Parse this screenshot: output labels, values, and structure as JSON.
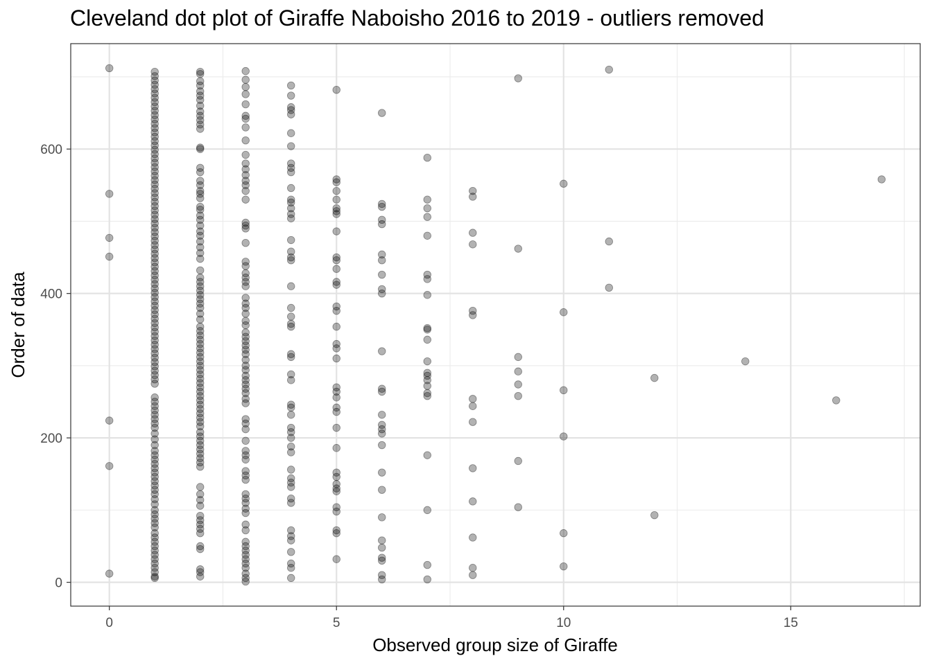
{
  "chart_data": {
    "type": "scatter",
    "title": "Cleveland dot plot of Giraffe Naboisho 2016 to 2019 - outliers removed",
    "xlabel": "Observed group size of Giraffe",
    "ylabel": "Order of data",
    "xlim": [
      -0.85,
      17.85
    ],
    "ylim": [
      -33,
      746
    ],
    "x_ticks": [
      0,
      5,
      10,
      15
    ],
    "y_ticks": [
      0,
      200,
      400,
      600
    ],
    "grid": true,
    "point_color": "#000000",
    "point_alpha": 0.3,
    "points": [
      [
        0,
        12
      ],
      [
        0,
        161
      ],
      [
        0,
        224
      ],
      [
        0,
        451
      ],
      [
        0,
        477
      ],
      [
        0,
        538
      ],
      [
        0,
        712
      ],
      [
        1,
        6
      ],
      [
        1,
        8
      ],
      [
        1,
        14
      ],
      [
        1,
        20
      ],
      [
        1,
        26
      ],
      [
        1,
        32
      ],
      [
        1,
        38
      ],
      [
        1,
        44
      ],
      [
        1,
        50
      ],
      [
        1,
        56
      ],
      [
        1,
        62
      ],
      [
        1,
        68
      ],
      [
        1,
        76
      ],
      [
        1,
        82
      ],
      [
        1,
        88
      ],
      [
        1,
        94
      ],
      [
        1,
        100
      ],
      [
        1,
        108
      ],
      [
        1,
        115
      ],
      [
        1,
        122
      ],
      [
        1,
        128
      ],
      [
        1,
        134
      ],
      [
        1,
        140
      ],
      [
        1,
        146
      ],
      [
        1,
        152
      ],
      [
        1,
        158
      ],
      [
        1,
        164
      ],
      [
        1,
        170
      ],
      [
        1,
        176
      ],
      [
        1,
        182
      ],
      [
        1,
        190
      ],
      [
        1,
        198
      ],
      [
        1,
        206
      ],
      [
        1,
        214
      ],
      [
        1,
        220
      ],
      [
        1,
        226
      ],
      [
        1,
        232
      ],
      [
        1,
        238
      ],
      [
        1,
        244
      ],
      [
        1,
        250
      ],
      [
        1,
        256
      ],
      [
        1,
        275
      ],
      [
        1,
        281
      ],
      [
        1,
        287
      ],
      [
        1,
        293
      ],
      [
        1,
        299
      ],
      [
        1,
        305
      ],
      [
        1,
        311
      ],
      [
        1,
        317
      ],
      [
        1,
        323
      ],
      [
        1,
        329
      ],
      [
        1,
        335
      ],
      [
        1,
        341
      ],
      [
        1,
        347
      ],
      [
        1,
        353
      ],
      [
        1,
        359
      ],
      [
        1,
        365
      ],
      [
        1,
        371
      ],
      [
        1,
        377
      ],
      [
        1,
        383
      ],
      [
        1,
        389
      ],
      [
        1,
        395
      ],
      [
        1,
        401
      ],
      [
        1,
        407
      ],
      [
        1,
        413
      ],
      [
        1,
        419
      ],
      [
        1,
        425
      ],
      [
        1,
        431
      ],
      [
        1,
        437
      ],
      [
        1,
        443
      ],
      [
        1,
        449
      ],
      [
        1,
        455
      ],
      [
        1,
        461
      ],
      [
        1,
        467
      ],
      [
        1,
        473
      ],
      [
        1,
        479
      ],
      [
        1,
        485
      ],
      [
        1,
        491
      ],
      [
        1,
        497
      ],
      [
        1,
        503
      ],
      [
        1,
        509
      ],
      [
        1,
        515
      ],
      [
        1,
        521
      ],
      [
        1,
        527
      ],
      [
        1,
        533
      ],
      [
        1,
        539
      ],
      [
        1,
        545
      ],
      [
        1,
        551
      ],
      [
        1,
        557
      ],
      [
        1,
        563
      ],
      [
        1,
        569
      ],
      [
        1,
        575
      ],
      [
        1,
        581
      ],
      [
        1,
        587
      ],
      [
        1,
        593
      ],
      [
        1,
        599
      ],
      [
        1,
        605
      ],
      [
        1,
        611
      ],
      [
        1,
        617
      ],
      [
        1,
        623
      ],
      [
        1,
        629
      ],
      [
        1,
        635
      ],
      [
        1,
        641
      ],
      [
        1,
        647
      ],
      [
        1,
        653
      ],
      [
        1,
        659
      ],
      [
        1,
        665
      ],
      [
        1,
        671
      ],
      [
        1,
        677
      ],
      [
        1,
        683
      ],
      [
        1,
        689
      ],
      [
        1,
        695
      ],
      [
        1,
        701
      ],
      [
        1,
        707
      ],
      [
        2,
        8
      ],
      [
        2,
        14
      ],
      [
        2,
        18
      ],
      [
        2,
        46
      ],
      [
        2,
        50
      ],
      [
        2,
        68
      ],
      [
        2,
        74
      ],
      [
        2,
        80
      ],
      [
        2,
        86
      ],
      [
        2,
        92
      ],
      [
        2,
        106
      ],
      [
        2,
        114
      ],
      [
        2,
        122
      ],
      [
        2,
        132
      ],
      [
        2,
        160
      ],
      [
        2,
        166
      ],
      [
        2,
        172
      ],
      [
        2,
        178
      ],
      [
        2,
        184
      ],
      [
        2,
        190
      ],
      [
        2,
        196
      ],
      [
        2,
        202
      ],
      [
        2,
        208
      ],
      [
        2,
        216
      ],
      [
        2,
        222
      ],
      [
        2,
        228
      ],
      [
        2,
        234
      ],
      [
        2,
        240
      ],
      [
        2,
        246
      ],
      [
        2,
        252
      ],
      [
        2,
        258
      ],
      [
        2,
        264
      ],
      [
        2,
        270
      ],
      [
        2,
        276
      ],
      [
        2,
        282
      ],
      [
        2,
        288
      ],
      [
        2,
        294
      ],
      [
        2,
        300
      ],
      [
        2,
        306
      ],
      [
        2,
        312
      ],
      [
        2,
        318
      ],
      [
        2,
        324
      ],
      [
        2,
        330
      ],
      [
        2,
        336
      ],
      [
        2,
        342
      ],
      [
        2,
        348
      ],
      [
        2,
        354
      ],
      [
        2,
        364
      ],
      [
        2,
        372
      ],
      [
        2,
        380
      ],
      [
        2,
        386
      ],
      [
        2,
        392
      ],
      [
        2,
        398
      ],
      [
        2,
        404
      ],
      [
        2,
        410
      ],
      [
        2,
        416
      ],
      [
        2,
        422
      ],
      [
        2,
        432
      ],
      [
        2,
        448
      ],
      [
        2,
        456
      ],
      [
        2,
        464
      ],
      [
        2,
        472
      ],
      [
        2,
        480
      ],
      [
        2,
        486
      ],
      [
        2,
        494
      ],
      [
        2,
        502
      ],
      [
        2,
        508
      ],
      [
        2,
        516
      ],
      [
        2,
        520
      ],
      [
        2,
        532
      ],
      [
        2,
        538
      ],
      [
        2,
        542
      ],
      [
        2,
        550
      ],
      [
        2,
        556
      ],
      [
        2,
        568
      ],
      [
        2,
        574
      ],
      [
        2,
        600
      ],
      [
        2,
        602
      ],
      [
        2,
        628
      ],
      [
        2,
        634
      ],
      [
        2,
        640
      ],
      [
        2,
        646
      ],
      [
        2,
        652
      ],
      [
        2,
        660
      ],
      [
        2,
        668
      ],
      [
        2,
        674
      ],
      [
        2,
        680
      ],
      [
        2,
        688
      ],
      [
        2,
        694
      ],
      [
        2,
        704
      ],
      [
        2,
        707
      ],
      [
        3,
        1
      ],
      [
        3,
        6
      ],
      [
        3,
        12
      ],
      [
        3,
        20
      ],
      [
        3,
        26
      ],
      [
        3,
        32
      ],
      [
        3,
        38
      ],
      [
        3,
        44
      ],
      [
        3,
        50
      ],
      [
        3,
        56
      ],
      [
        3,
        72
      ],
      [
        3,
        80
      ],
      [
        3,
        96
      ],
      [
        3,
        102
      ],
      [
        3,
        110
      ],
      [
        3,
        116
      ],
      [
        3,
        122
      ],
      [
        3,
        142
      ],
      [
        3,
        148
      ],
      [
        3,
        154
      ],
      [
        3,
        170
      ],
      [
        3,
        176
      ],
      [
        3,
        182
      ],
      [
        3,
        196
      ],
      [
        3,
        212
      ],
      [
        3,
        220
      ],
      [
        3,
        226
      ],
      [
        3,
        248
      ],
      [
        3,
        254
      ],
      [
        3,
        262
      ],
      [
        3,
        268
      ],
      [
        3,
        274
      ],
      [
        3,
        280
      ],
      [
        3,
        286
      ],
      [
        3,
        294
      ],
      [
        3,
        300
      ],
      [
        3,
        308
      ],
      [
        3,
        316
      ],
      [
        3,
        322
      ],
      [
        3,
        328
      ],
      [
        3,
        334
      ],
      [
        3,
        340
      ],
      [
        3,
        346
      ],
      [
        3,
        356
      ],
      [
        3,
        362
      ],
      [
        3,
        372
      ],
      [
        3,
        380
      ],
      [
        3,
        386
      ],
      [
        3,
        394
      ],
      [
        3,
        410
      ],
      [
        3,
        416
      ],
      [
        3,
        422
      ],
      [
        3,
        428
      ],
      [
        3,
        438
      ],
      [
        3,
        444
      ],
      [
        3,
        470
      ],
      [
        3,
        490
      ],
      [
        3,
        494
      ],
      [
        3,
        498
      ],
      [
        3,
        530
      ],
      [
        3,
        542
      ],
      [
        3,
        550
      ],
      [
        3,
        556
      ],
      [
        3,
        564
      ],
      [
        3,
        572
      ],
      [
        3,
        580
      ],
      [
        3,
        592
      ],
      [
        3,
        612
      ],
      [
        3,
        630
      ],
      [
        3,
        642
      ],
      [
        3,
        646
      ],
      [
        3,
        662
      ],
      [
        3,
        676
      ],
      [
        3,
        686
      ],
      [
        3,
        696
      ],
      [
        3,
        708
      ],
      [
        4,
        6
      ],
      [
        4,
        20
      ],
      [
        4,
        26
      ],
      [
        4,
        42
      ],
      [
        4,
        58
      ],
      [
        4,
        64
      ],
      [
        4,
        72
      ],
      [
        4,
        110
      ],
      [
        4,
        116
      ],
      [
        4,
        132
      ],
      [
        4,
        138
      ],
      [
        4,
        144
      ],
      [
        4,
        156
      ],
      [
        4,
        180
      ],
      [
        4,
        188
      ],
      [
        4,
        200
      ],
      [
        4,
        208
      ],
      [
        4,
        214
      ],
      [
        4,
        232
      ],
      [
        4,
        242
      ],
      [
        4,
        246
      ],
      [
        4,
        280
      ],
      [
        4,
        288
      ],
      [
        4,
        312
      ],
      [
        4,
        316
      ],
      [
        4,
        354
      ],
      [
        4,
        358
      ],
      [
        4,
        368
      ],
      [
        4,
        380
      ],
      [
        4,
        410
      ],
      [
        4,
        446
      ],
      [
        4,
        450
      ],
      [
        4,
        458
      ],
      [
        4,
        474
      ],
      [
        4,
        504
      ],
      [
        4,
        510
      ],
      [
        4,
        518
      ],
      [
        4,
        526
      ],
      [
        4,
        530
      ],
      [
        4,
        546
      ],
      [
        4,
        568
      ],
      [
        4,
        574
      ],
      [
        4,
        580
      ],
      [
        4,
        604
      ],
      [
        4,
        622
      ],
      [
        4,
        648
      ],
      [
        4,
        654
      ],
      [
        4,
        658
      ],
      [
        4,
        674
      ],
      [
        4,
        688
      ],
      [
        5,
        32
      ],
      [
        5,
        68
      ],
      [
        5,
        72
      ],
      [
        5,
        98
      ],
      [
        5,
        104
      ],
      [
        5,
        126
      ],
      [
        5,
        130
      ],
      [
        5,
        136
      ],
      [
        5,
        146
      ],
      [
        5,
        152
      ],
      [
        5,
        186
      ],
      [
        5,
        214
      ],
      [
        5,
        236
      ],
      [
        5,
        242
      ],
      [
        5,
        256
      ],
      [
        5,
        264
      ],
      [
        5,
        270
      ],
      [
        5,
        310
      ],
      [
        5,
        324
      ],
      [
        5,
        330
      ],
      [
        5,
        354
      ],
      [
        5,
        376
      ],
      [
        5,
        382
      ],
      [
        5,
        412
      ],
      [
        5,
        416
      ],
      [
        5,
        434
      ],
      [
        5,
        446
      ],
      [
        5,
        450
      ],
      [
        5,
        486
      ],
      [
        5,
        510
      ],
      [
        5,
        514
      ],
      [
        5,
        518
      ],
      [
        5,
        530
      ],
      [
        5,
        542
      ],
      [
        5,
        554
      ],
      [
        5,
        558
      ],
      [
        5,
        682
      ],
      [
        6,
        4
      ],
      [
        6,
        10
      ],
      [
        6,
        30
      ],
      [
        6,
        34
      ],
      [
        6,
        48
      ],
      [
        6,
        58
      ],
      [
        6,
        90
      ],
      [
        6,
        128
      ],
      [
        6,
        152
      ],
      [
        6,
        190
      ],
      [
        6,
        206
      ],
      [
        6,
        212
      ],
      [
        6,
        218
      ],
      [
        6,
        232
      ],
      [
        6,
        264
      ],
      [
        6,
        268
      ],
      [
        6,
        320
      ],
      [
        6,
        400
      ],
      [
        6,
        406
      ],
      [
        6,
        426
      ],
      [
        6,
        446
      ],
      [
        6,
        454
      ],
      [
        6,
        496
      ],
      [
        6,
        502
      ],
      [
        6,
        520
      ],
      [
        6,
        524
      ],
      [
        6,
        650
      ],
      [
        7,
        4
      ],
      [
        7,
        24
      ],
      [
        7,
        100
      ],
      [
        7,
        176
      ],
      [
        7,
        258
      ],
      [
        7,
        262
      ],
      [
        7,
        272
      ],
      [
        7,
        280
      ],
      [
        7,
        286
      ],
      [
        7,
        290
      ],
      [
        7,
        306
      ],
      [
        7,
        336
      ],
      [
        7,
        350
      ],
      [
        7,
        352
      ],
      [
        7,
        398
      ],
      [
        7,
        420
      ],
      [
        7,
        426
      ],
      [
        7,
        480
      ],
      [
        7,
        506
      ],
      [
        7,
        518
      ],
      [
        7,
        530
      ],
      [
        7,
        588
      ],
      [
        8,
        10
      ],
      [
        8,
        20
      ],
      [
        8,
        62
      ],
      [
        8,
        112
      ],
      [
        8,
        158
      ],
      [
        8,
        222
      ],
      [
        8,
        244
      ],
      [
        8,
        254
      ],
      [
        8,
        370
      ],
      [
        8,
        376
      ],
      [
        8,
        468
      ],
      [
        8,
        484
      ],
      [
        8,
        534
      ],
      [
        8,
        542
      ],
      [
        9,
        104
      ],
      [
        9,
        168
      ],
      [
        9,
        258
      ],
      [
        9,
        274
      ],
      [
        9,
        292
      ],
      [
        9,
        312
      ],
      [
        9,
        462
      ],
      [
        9,
        698
      ],
      [
        10,
        22
      ],
      [
        10,
        68
      ],
      [
        10,
        202
      ],
      [
        10,
        266
      ],
      [
        10,
        374
      ],
      [
        10,
        552
      ],
      [
        11,
        408
      ],
      [
        11,
        472
      ],
      [
        11,
        710
      ],
      [
        12,
        93
      ],
      [
        12,
        283
      ],
      [
        14,
        306
      ],
      [
        16,
        252
      ],
      [
        17,
        558
      ]
    ]
  }
}
